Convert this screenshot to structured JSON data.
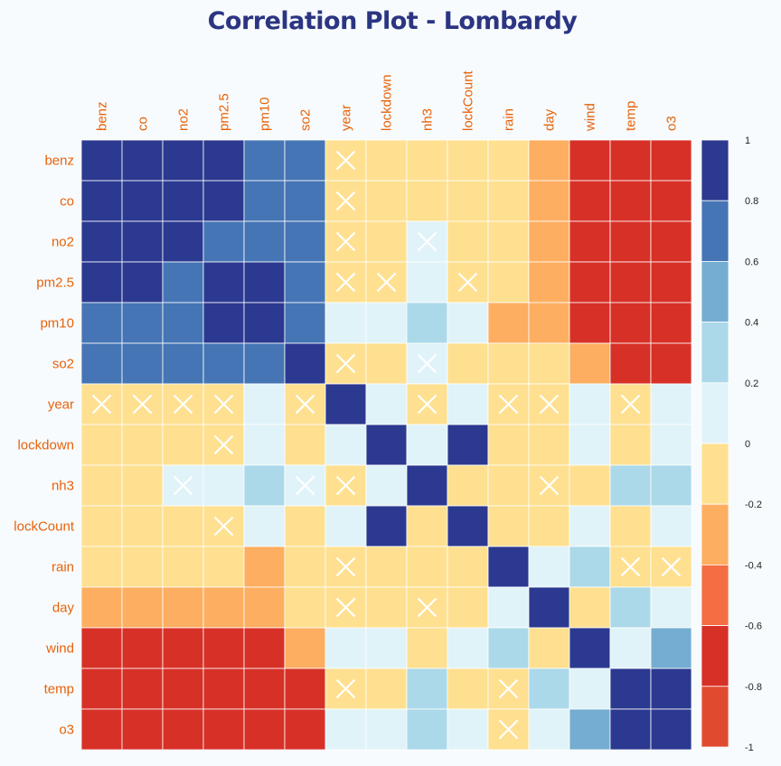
{
  "chart_data": {
    "type": "heatmap",
    "title": "Correlation Plot - Lombardy",
    "variables": [
      "benz",
      "co",
      "no2",
      "pm2.5",
      "pm10",
      "so2",
      "year",
      "lockdown",
      "nh3",
      "lockCount",
      "rain",
      "day",
      "wind",
      "temp",
      "o3"
    ],
    "values": [
      [
        1.0,
        0.9,
        0.9,
        0.9,
        0.7,
        0.7,
        0.0,
        -0.1,
        -0.1,
        -0.1,
        -0.1,
        -0.3,
        -0.6,
        -0.7,
        -0.7
      ],
      [
        0.9,
        1.0,
        0.9,
        0.9,
        0.7,
        0.7,
        0.0,
        -0.1,
        -0.1,
        -0.1,
        -0.1,
        -0.3,
        -0.6,
        -0.7,
        -0.7
      ],
      [
        0.9,
        0.9,
        1.0,
        0.7,
        0.7,
        0.7,
        0.0,
        -0.1,
        0.1,
        -0.1,
        -0.1,
        -0.3,
        -0.6,
        -0.7,
        -0.7
      ],
      [
        0.9,
        0.9,
        0.7,
        1.0,
        0.9,
        0.7,
        0.0,
        0.0,
        0.1,
        0.0,
        -0.1,
        -0.3,
        -0.6,
        -0.6,
        -0.6
      ],
      [
        0.7,
        0.7,
        0.7,
        0.9,
        1.0,
        0.7,
        0.1,
        0.1,
        0.3,
        0.1,
        -0.3,
        -0.3,
        -0.6,
        -0.6,
        -0.6
      ],
      [
        0.7,
        0.7,
        0.7,
        0.7,
        0.7,
        1.0,
        0.0,
        -0.1,
        0.1,
        -0.1,
        -0.1,
        -0.1,
        -0.3,
        -0.6,
        -0.6
      ],
      [
        0.0,
        0.0,
        0.0,
        0.0,
        0.1,
        0.0,
        1.0,
        0.1,
        0.0,
        0.1,
        0.0,
        0.0,
        0.1,
        0.0,
        0.1
      ],
      [
        -0.1,
        -0.1,
        -0.1,
        0.0,
        0.1,
        -0.1,
        0.1,
        1.0,
        0.1,
        0.9,
        -0.1,
        -0.1,
        0.1,
        -0.1,
        0.1
      ],
      [
        -0.1,
        -0.1,
        0.1,
        0.1,
        0.3,
        0.1,
        0.0,
        0.1,
        1.0,
        0.0,
        -0.1,
        0.0,
        -0.1,
        0.3,
        0.3
      ],
      [
        -0.1,
        -0.1,
        -0.1,
        0.0,
        0.1,
        -0.1,
        0.1,
        0.9,
        0.0,
        1.0,
        -0.1,
        -0.1,
        0.1,
        -0.1,
        0.1
      ],
      [
        -0.1,
        -0.1,
        -0.1,
        -0.1,
        -0.3,
        -0.1,
        0.0,
        -0.1,
        -0.1,
        -0.1,
        1.0,
        0.1,
        0.3,
        0.0,
        0.0
      ],
      [
        -0.3,
        -0.3,
        -0.3,
        -0.3,
        -0.3,
        -0.1,
        0.0,
        -0.1,
        0.0,
        -0.1,
        0.1,
        1.0,
        -0.1,
        0.3,
        0.1
      ],
      [
        -0.6,
        -0.6,
        -0.6,
        -0.6,
        -0.6,
        -0.3,
        0.1,
        0.1,
        -0.1,
        0.1,
        0.3,
        -0.1,
        1.0,
        0.1,
        0.5
      ],
      [
        -0.7,
        -0.7,
        -0.7,
        -0.6,
        -0.6,
        -0.6,
        0.0,
        -0.1,
        0.3,
        -0.1,
        0.0,
        0.3,
        0.1,
        1.0,
        0.9
      ],
      [
        -0.7,
        -0.7,
        -0.7,
        -0.6,
        -0.6,
        -0.6,
        0.1,
        0.1,
        0.3,
        0.1,
        0.0,
        0.1,
        0.5,
        0.9,
        1.0
      ]
    ],
    "crossed": [
      [
        6,
        0
      ],
      [
        6,
        1
      ],
      [
        6,
        2
      ],
      [
        6,
        3
      ],
      [
        6,
        5
      ],
      [
        6,
        8
      ],
      [
        6,
        10
      ],
      [
        6,
        11
      ],
      [
        6,
        13
      ],
      [
        3,
        7
      ],
      [
        3,
        9
      ],
      [
        2,
        8
      ],
      [
        5,
        8
      ],
      [
        8,
        11
      ],
      [
        13,
        10
      ],
      [
        14,
        10
      ]
    ],
    "colorbar": {
      "ticks": [
        "1",
        "0.8",
        "0.6",
        "0.4",
        "0.2",
        "0",
        "-0.2",
        "-0.4",
        "-0.6",
        "-0.8",
        "-1"
      ],
      "colors": [
        "#2b3990",
        "#4575b4",
        "#74add1",
        "#abd9e9",
        "#e0f3f8",
        "#fee090",
        "#fdae61",
        "#f46d43",
        "#d73027",
        "#e04b30"
      ]
    },
    "label_color": "#e8620a"
  }
}
